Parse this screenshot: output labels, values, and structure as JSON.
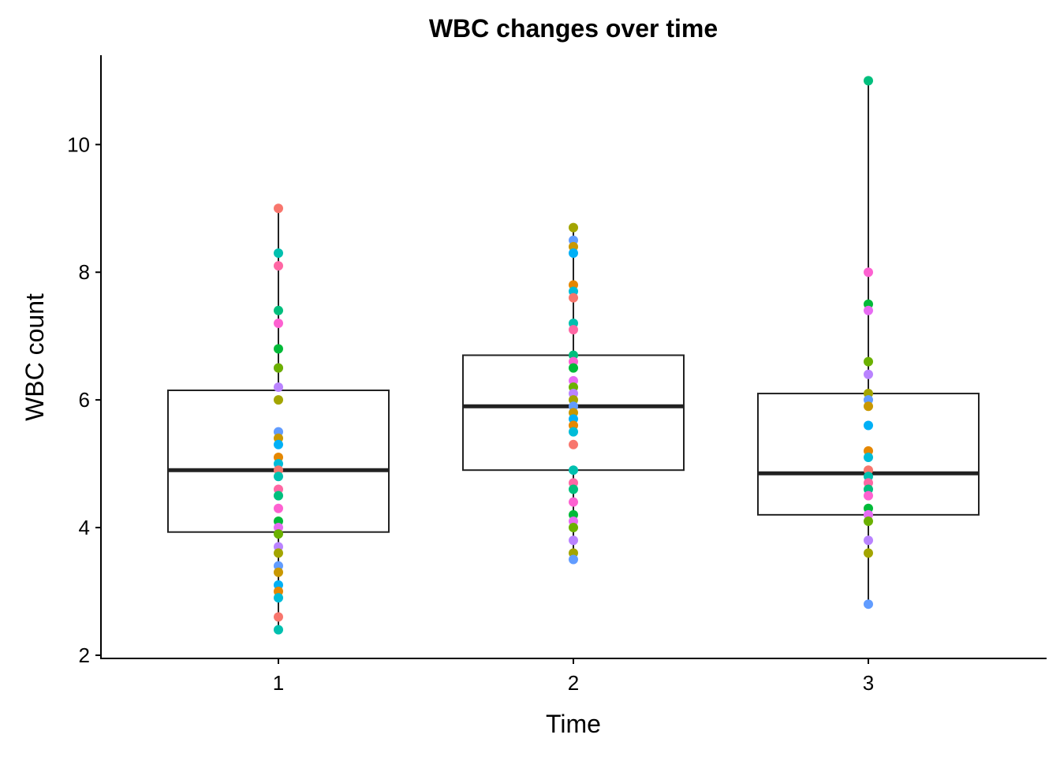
{
  "chart_data": {
    "type": "box",
    "title": "WBC changes over time",
    "xlabel": "Time",
    "ylabel": "WBC count",
    "categories": [
      "1",
      "2",
      "3"
    ],
    "y_ticks": [
      "2",
      "4",
      "6",
      "8",
      "10"
    ],
    "ylim": [
      1.95,
      11.4
    ],
    "grid": false,
    "legend": "none",
    "boxes": [
      {
        "category": "1",
        "min": 2.4,
        "q1": 3.93,
        "median": 4.9,
        "q3": 6.15,
        "max": 9.0
      },
      {
        "category": "2",
        "min": 3.5,
        "q1": 4.9,
        "median": 5.9,
        "q3": 6.7,
        "max": 8.7
      },
      {
        "category": "3",
        "min": 2.8,
        "q1": 4.2,
        "median": 4.85,
        "q3": 6.1,
        "max": 11.0
      }
    ],
    "points": [
      {
        "category": "1",
        "values": [
          9.0,
          8.3,
          8.1,
          7.4,
          7.2,
          6.8,
          6.5,
          6.5,
          6.2,
          6.0,
          5.5,
          5.4,
          5.3,
          5.1,
          5.0,
          4.9,
          4.8,
          4.6,
          4.5,
          4.3,
          4.1,
          4.0,
          3.9,
          3.7,
          3.6,
          3.4,
          3.3,
          3.1,
          3.0,
          2.9,
          2.6,
          2.4
        ]
      },
      {
        "category": "2",
        "values": [
          8.7,
          8.5,
          8.4,
          8.3,
          7.8,
          7.7,
          7.6,
          7.2,
          7.1,
          6.7,
          6.6,
          6.5,
          6.3,
          6.2,
          6.1,
          6.0,
          5.9,
          5.8,
          5.7,
          5.6,
          5.5,
          5.3,
          4.9,
          4.7,
          4.6,
          4.4,
          4.2,
          4.1,
          4.0,
          3.8,
          3.6,
          3.5
        ]
      },
      {
        "category": "3",
        "values": [
          11.0,
          8.0,
          7.5,
          7.4,
          6.6,
          6.4,
          6.1,
          6.0,
          5.9,
          5.6,
          5.2,
          5.1,
          4.9,
          4.8,
          4.7,
          4.6,
          4.5,
          4.3,
          4.2,
          4.1,
          3.8,
          3.6,
          2.8
        ]
      }
    ],
    "point_colors": [
      "#F8766D",
      "#E58700",
      "#C99800",
      "#A3A500",
      "#6BB100",
      "#00BA38",
      "#00BF7D",
      "#00C0AF",
      "#00BCD8",
      "#00B0F6",
      "#619CFF",
      "#B983FF",
      "#E76BF3",
      "#FD61D1",
      "#FF67A4"
    ]
  }
}
